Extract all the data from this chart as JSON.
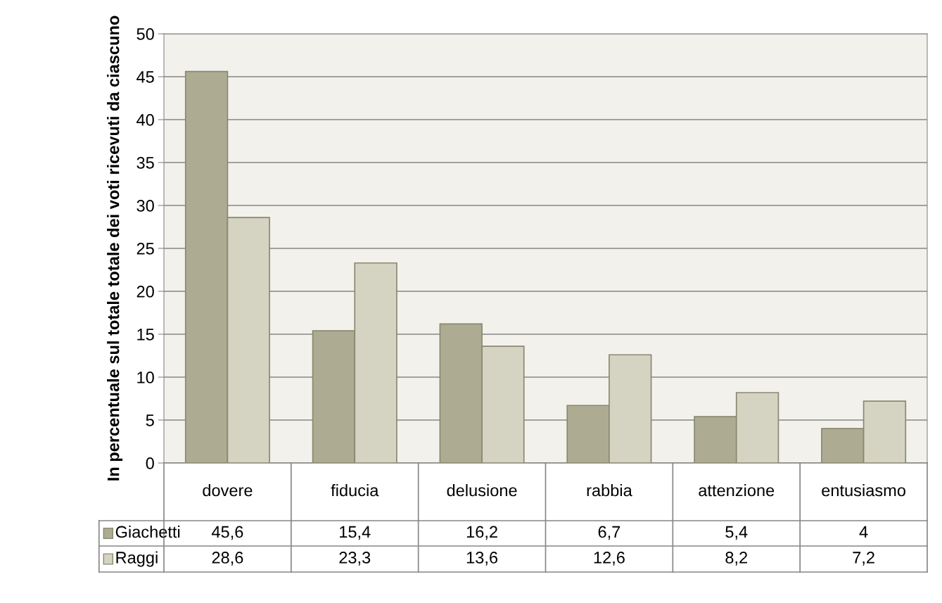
{
  "chart_data": {
    "type": "bar",
    "ylabel": "In percentuale sul totale totale dei voti ricevuti da ciascuno",
    "categories": [
      "dovere",
      "fiducia",
      "delusione",
      "rabbia",
      "attenzione",
      "entusiasmo"
    ],
    "series": [
      {
        "name": "Giachetti",
        "color": "#aeab93",
        "values": [
          45.6,
          15.4,
          16.2,
          6.7,
          5.4,
          4
        ],
        "value_labels": [
          "45,6",
          "15,4",
          "16,2",
          "6,7",
          "5,4",
          "4"
        ]
      },
      {
        "name": "Raggi",
        "color": "#d5d3c1",
        "values": [
          28.6,
          23.3,
          13.6,
          12.6,
          8.2,
          7.2
        ],
        "value_labels": [
          "28,6",
          "23,3",
          "13,6",
          "12,6",
          "8,2",
          "7,2"
        ]
      }
    ],
    "ylim": [
      0,
      50
    ],
    "yticks": [
      0,
      5,
      10,
      15,
      20,
      25,
      30,
      35,
      40,
      45,
      50
    ],
    "grid": "y",
    "legend": "bottom"
  }
}
